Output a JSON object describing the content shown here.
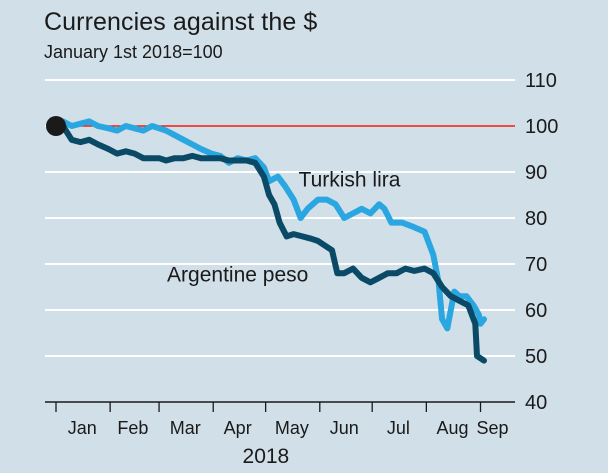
{
  "chart_data": {
    "type": "line",
    "title": "Currencies against the $",
    "subtitle": "January 1st 2018=100",
    "xlabel": "2018",
    "ylabel": "",
    "ylim": [
      40,
      110
    ],
    "yticks": [
      40,
      50,
      60,
      70,
      80,
      90,
      100,
      110
    ],
    "xtick_labels": [
      "Jan",
      "Feb",
      "Mar",
      "Apr",
      "May",
      "Jun",
      "Jul",
      "Aug",
      "Sep"
    ],
    "grid": true,
    "reference_line": 100,
    "start_marker": {
      "date": "2018-01-01",
      "value": 100
    },
    "colors": {
      "background": "#d1dfe9",
      "grid": "#ffffff",
      "reference": "#e3120b",
      "turkish_lira": "#2aa6e0",
      "argentine_peso": "#0b4a66",
      "marker": "#1a1a1a"
    },
    "series": [
      {
        "name": "Turkish lira",
        "color": "#2aa6e0",
        "points": [
          [
            "2018-01-01",
            100
          ],
          [
            "2018-01-05",
            101
          ],
          [
            "2018-01-10",
            100
          ],
          [
            "2018-01-15",
            100.5
          ],
          [
            "2018-01-20",
            101
          ],
          [
            "2018-01-25",
            100
          ],
          [
            "2018-01-31",
            99.5
          ],
          [
            "2018-02-05",
            99
          ],
          [
            "2018-02-10",
            100
          ],
          [
            "2018-02-15",
            99.5
          ],
          [
            "2018-02-20",
            99
          ],
          [
            "2018-02-25",
            100
          ],
          [
            "2018-03-01",
            99.5
          ],
          [
            "2018-03-05",
            99
          ],
          [
            "2018-03-10",
            98
          ],
          [
            "2018-03-15",
            97
          ],
          [
            "2018-03-20",
            96
          ],
          [
            "2018-03-25",
            95
          ],
          [
            "2018-03-31",
            94
          ],
          [
            "2018-04-05",
            93.5
          ],
          [
            "2018-04-10",
            92
          ],
          [
            "2018-04-15",
            93
          ],
          [
            "2018-04-20",
            92.5
          ],
          [
            "2018-04-25",
            93
          ],
          [
            "2018-04-30",
            91
          ],
          [
            "2018-05-03",
            88
          ],
          [
            "2018-05-08",
            89
          ],
          [
            "2018-05-12",
            87
          ],
          [
            "2018-05-17",
            84
          ],
          [
            "2018-05-21",
            80
          ],
          [
            "2018-05-25",
            82
          ],
          [
            "2018-05-31",
            84
          ],
          [
            "2018-06-05",
            84
          ],
          [
            "2018-06-10",
            83
          ],
          [
            "2018-06-15",
            80
          ],
          [
            "2018-06-20",
            81
          ],
          [
            "2018-06-25",
            82
          ],
          [
            "2018-06-30",
            81
          ],
          [
            "2018-07-05",
            83
          ],
          [
            "2018-07-08",
            82
          ],
          [
            "2018-07-12",
            79
          ],
          [
            "2018-07-18",
            79
          ],
          [
            "2018-07-25",
            78
          ],
          [
            "2018-07-31",
            77
          ],
          [
            "2018-08-05",
            72
          ],
          [
            "2018-08-08",
            66
          ],
          [
            "2018-08-10",
            58
          ],
          [
            "2018-08-13",
            56
          ],
          [
            "2018-08-17",
            64
          ],
          [
            "2018-08-20",
            63
          ],
          [
            "2018-08-24",
            63
          ],
          [
            "2018-08-28",
            61
          ],
          [
            "2018-08-31",
            59
          ],
          [
            "2018-09-01",
            57
          ],
          [
            "2018-09-03",
            58
          ]
        ]
      },
      {
        "name": "Argentine peso",
        "color": "#0b4a66",
        "points": [
          [
            "2018-01-01",
            100
          ],
          [
            "2018-01-05",
            100
          ],
          [
            "2018-01-10",
            97
          ],
          [
            "2018-01-15",
            96.5
          ],
          [
            "2018-01-20",
            97
          ],
          [
            "2018-01-25",
            96
          ],
          [
            "2018-01-31",
            95
          ],
          [
            "2018-02-05",
            94
          ],
          [
            "2018-02-10",
            94.5
          ],
          [
            "2018-02-15",
            94
          ],
          [
            "2018-02-20",
            93
          ],
          [
            "2018-02-25",
            93
          ],
          [
            "2018-03-01",
            93
          ],
          [
            "2018-03-05",
            92.5
          ],
          [
            "2018-03-10",
            93
          ],
          [
            "2018-03-15",
            93
          ],
          [
            "2018-03-20",
            93.5
          ],
          [
            "2018-03-25",
            93
          ],
          [
            "2018-03-31",
            93
          ],
          [
            "2018-04-05",
            93
          ],
          [
            "2018-04-10",
            92.5
          ],
          [
            "2018-04-15",
            92.5
          ],
          [
            "2018-04-20",
            92.5
          ],
          [
            "2018-04-25",
            92
          ],
          [
            "2018-04-30",
            89
          ],
          [
            "2018-05-03",
            85
          ],
          [
            "2018-05-06",
            83
          ],
          [
            "2018-05-09",
            79
          ],
          [
            "2018-05-13",
            76
          ],
          [
            "2018-05-17",
            76.5
          ],
          [
            "2018-05-22",
            76
          ],
          [
            "2018-05-27",
            75.5
          ],
          [
            "2018-05-31",
            75
          ],
          [
            "2018-06-04",
            74
          ],
          [
            "2018-06-08",
            73
          ],
          [
            "2018-06-11",
            68
          ],
          [
            "2018-06-15",
            68
          ],
          [
            "2018-06-20",
            69
          ],
          [
            "2018-06-25",
            67
          ],
          [
            "2018-06-30",
            66
          ],
          [
            "2018-07-05",
            67
          ],
          [
            "2018-07-10",
            68
          ],
          [
            "2018-07-15",
            68
          ],
          [
            "2018-07-20",
            69
          ],
          [
            "2018-07-25",
            68.5
          ],
          [
            "2018-07-31",
            69
          ],
          [
            "2018-08-05",
            68
          ],
          [
            "2018-08-10",
            65
          ],
          [
            "2018-08-15",
            63
          ],
          [
            "2018-08-20",
            62
          ],
          [
            "2018-08-25",
            61
          ],
          [
            "2018-08-29",
            57
          ],
          [
            "2018-08-30",
            50
          ],
          [
            "2018-09-01",
            49.5
          ],
          [
            "2018-09-03",
            49
          ]
        ]
      }
    ],
    "annotations": [
      {
        "text": "Turkish lira",
        "series": "Turkish lira"
      },
      {
        "text": "Argentine peso",
        "series": "Argentine peso"
      }
    ]
  }
}
